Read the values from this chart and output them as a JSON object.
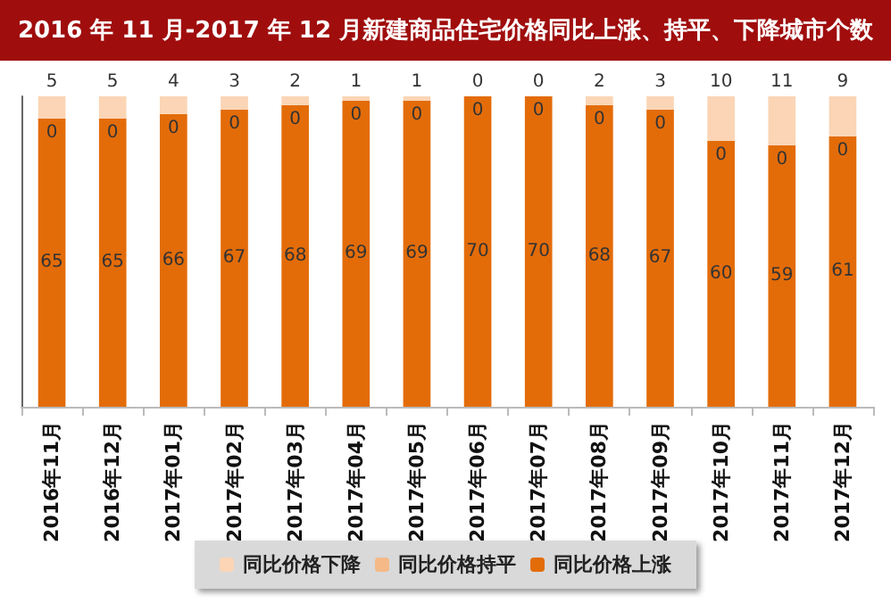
{
  "chart_data": {
    "type": "bar",
    "title": "2016 年 11 月-2017 年 12 月新建商品住宅价格同比上涨、持平、下降城市个数",
    "categories": [
      "2016年11月",
      "2016年12月",
      "2017年01月",
      "2017年02月",
      "2017年03月",
      "2017年04月",
      "2017年05月",
      "2017年06月",
      "2017年07月",
      "2017年08月",
      "2017年09月",
      "2017年10月",
      "2017年11月",
      "2017年12月"
    ],
    "stacked": true,
    "data_labels": true,
    "legend": "bottom",
    "grid": false,
    "tick_labels": "x",
    "ylim": [
      0,
      70
    ],
    "series": [
      {
        "name": "同比价格上涨",
        "color": "#e36c09",
        "values": [
          65,
          65,
          66,
          67,
          68,
          69,
          69,
          70,
          70,
          68,
          67,
          60,
          59,
          61
        ]
      },
      {
        "name": "同比价格持平",
        "color": "#f5b987",
        "values": [
          0,
          0,
          0,
          0,
          0,
          0,
          0,
          0,
          0,
          0,
          0,
          0,
          0,
          0
        ]
      },
      {
        "name": "同比价格下降",
        "color": "#fbd5b5",
        "values": [
          5,
          5,
          4,
          3,
          2,
          1,
          1,
          0,
          0,
          2,
          3,
          10,
          11,
          9
        ]
      }
    ]
  }
}
